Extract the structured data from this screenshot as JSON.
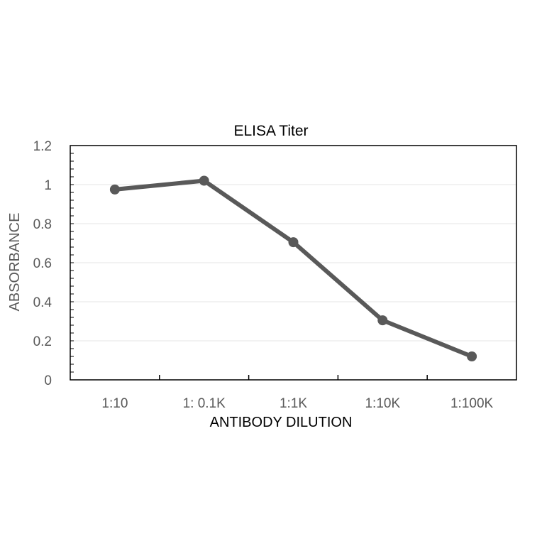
{
  "chart_data": {
    "type": "line",
    "title": "ELISA Titer",
    "xlabel": "ANTIBODY DILUTION",
    "ylabel": "ABSORBANCE",
    "categories": [
      "1:10",
      "1: 0.1K",
      "1:1K",
      "1:10K",
      "1:100K"
    ],
    "series": [
      {
        "values": [
          0.975,
          1.02,
          0.705,
          0.305,
          0.12
        ],
        "color": "#595959"
      }
    ],
    "ylim": [
      0,
      1.2
    ],
    "yticks": [
      "0",
      "0.2",
      "0.4",
      "0.6",
      "0.8",
      "1",
      "1.2"
    ],
    "grid": true,
    "legend": "none"
  }
}
